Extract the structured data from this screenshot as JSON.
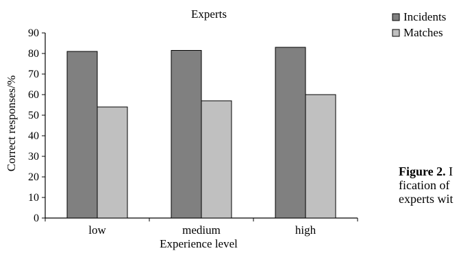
{
  "chart_data": {
    "type": "bar",
    "title": "Experts",
    "xlabel": "Experience level",
    "ylabel": "Correct responses/%",
    "categories": [
      "low",
      "medium",
      "high"
    ],
    "series": [
      {
        "name": "Incidents",
        "values": [
          81,
          81.5,
          83
        ],
        "color": "#808080"
      },
      {
        "name": "Matches",
        "values": [
          54,
          57,
          60
        ],
        "color": "#c0c0c0"
      }
    ],
    "ylim": [
      0,
      90
    ],
    "yticks": [
      "0",
      "10",
      "20",
      "30",
      "40",
      "50",
      "60",
      "70",
      "80",
      "90"
    ],
    "grid": false,
    "legend": "top-right"
  },
  "caption": {
    "label": "Figure 2.",
    "line1_rest": "I",
    "line2": "fication  of",
    "line3": "experts wit"
  }
}
